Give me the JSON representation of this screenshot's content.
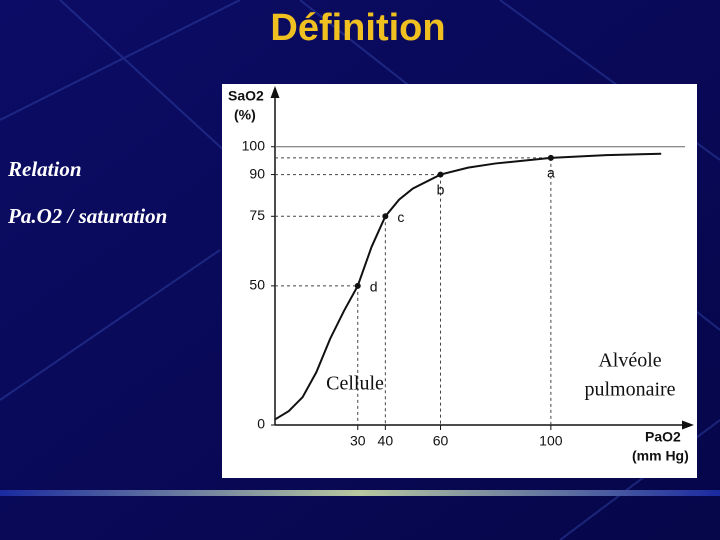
{
  "slide": {
    "title": "Définition",
    "bullets": [
      "Relation",
      "Pa.O2 / saturation"
    ],
    "notes": [
      "Cellule",
      "Alvéole",
      "pulmonaire"
    ]
  },
  "chart_data": {
    "type": "line",
    "ylabel": [
      "SaO2",
      "(%)"
    ],
    "xlabel": [
      "PaO2",
      "(mm Hg)"
    ],
    "x": [
      0,
      5,
      10,
      15,
      20,
      25,
      30,
      35,
      40,
      45,
      50,
      60,
      70,
      80,
      100,
      120,
      140
    ],
    "series": [
      {
        "name": "SaO2",
        "color": "#111111",
        "values": [
          2,
          5,
          10,
          19,
          31,
          41,
          50,
          64,
          75,
          81,
          85,
          90,
          92.5,
          94,
          96,
          97,
          97.5
        ]
      }
    ],
    "xlim": [
      0,
      145
    ],
    "ylim": [
      0,
      115
    ],
    "xticks": [
      30,
      40,
      60,
      100
    ],
    "yticks": [
      0,
      50,
      75,
      90,
      100
    ],
    "hline": 100,
    "annotations": [
      {
        "label": "a",
        "x": 100,
        "y": 96
      },
      {
        "label": "b",
        "x": 60,
        "y": 90
      },
      {
        "label": "c",
        "x": 40,
        "y": 75
      },
      {
        "label": "d",
        "x": 30,
        "y": 50
      }
    ],
    "grid": false
  }
}
